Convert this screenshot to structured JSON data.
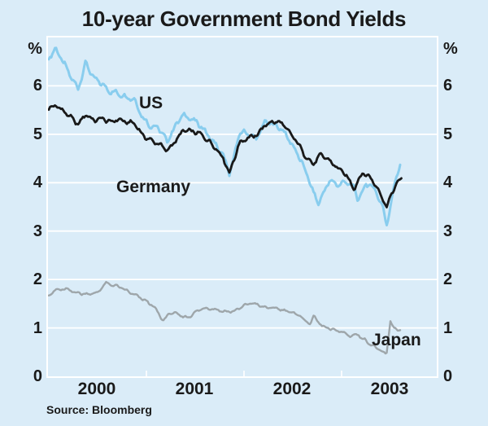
{
  "title": "10-year Government Bond Yields",
  "source": "Source: Bloomberg",
  "colors": {
    "background": "#daecf8",
    "grid": "#ffffff",
    "text": "#1a1a1a",
    "us_line": "#89cdee",
    "germany_line": "#191919",
    "japan_line": "#9ea6aa"
  },
  "chart_data": {
    "type": "line",
    "title": "10-year Government Bond Yields",
    "unit": "%",
    "ylim": [
      0,
      7
    ],
    "yticks": [
      0,
      1,
      2,
      3,
      4,
      5,
      6
    ],
    "xticks_years": [
      "2000",
      "2001",
      "2002",
      "2003"
    ],
    "x_range": [
      2000.0,
      2003.98
    ],
    "grid": true,
    "legend_position": "inline-labels",
    "source": "Source: Bloomberg",
    "series": [
      {
        "name": "US",
        "color": "#89cdee",
        "x": [
          2000.0,
          2000.07,
          2000.17,
          2000.25,
          2000.3,
          2000.38,
          2000.46,
          2000.54,
          2000.63,
          2000.71,
          2000.79,
          2000.88,
          2000.96,
          2001.04,
          2001.13,
          2001.21,
          2001.29,
          2001.38,
          2001.46,
          2001.54,
          2001.63,
          2001.71,
          2001.79,
          2001.85,
          2001.96,
          2002.04,
          2002.13,
          2002.21,
          2002.29,
          2002.38,
          2002.46,
          2002.54,
          2002.63,
          2002.71,
          2002.76,
          2002.88,
          2002.96,
          2003.04,
          2003.13,
          2003.17,
          2003.25,
          2003.33,
          2003.42,
          2003.46,
          2003.54,
          2003.6
        ],
        "values": [
          6.58,
          6.77,
          6.4,
          6.1,
          5.95,
          6.48,
          6.15,
          6.05,
          5.88,
          5.85,
          5.78,
          5.72,
          5.35,
          5.18,
          5.12,
          4.85,
          5.15,
          5.42,
          5.3,
          5.22,
          4.98,
          4.78,
          4.55,
          4.17,
          5.05,
          5.02,
          4.9,
          5.25,
          5.22,
          5.12,
          4.9,
          4.62,
          4.25,
          3.8,
          3.57,
          4.05,
          3.95,
          4.02,
          3.9,
          3.62,
          3.98,
          3.9,
          3.52,
          3.1,
          3.95,
          4.4
        ]
      },
      {
        "name": "Germany",
        "color": "#191919",
        "x": [
          2000.0,
          2000.07,
          2000.17,
          2000.25,
          2000.3,
          2000.38,
          2000.46,
          2000.54,
          2000.63,
          2000.71,
          2000.79,
          2000.88,
          2000.96,
          2001.04,
          2001.13,
          2001.21,
          2001.29,
          2001.38,
          2001.46,
          2001.54,
          2001.63,
          2001.71,
          2001.79,
          2001.85,
          2001.96,
          2002.04,
          2002.13,
          2002.21,
          2002.29,
          2002.38,
          2002.46,
          2002.54,
          2002.63,
          2002.71,
          2002.79,
          2002.88,
          2002.96,
          2003.04,
          2003.13,
          2003.21,
          2003.29,
          2003.38,
          2003.46,
          2003.54,
          2003.62
        ],
        "values": [
          5.52,
          5.6,
          5.45,
          5.3,
          5.2,
          5.42,
          5.28,
          5.33,
          5.25,
          5.31,
          5.25,
          5.23,
          4.98,
          4.88,
          4.8,
          4.66,
          4.84,
          5.08,
          5.06,
          5.02,
          4.88,
          4.72,
          4.5,
          4.2,
          4.85,
          4.92,
          4.98,
          5.18,
          5.26,
          5.24,
          5.05,
          4.85,
          4.55,
          4.38,
          4.58,
          4.45,
          4.3,
          4.17,
          3.88,
          4.2,
          4.12,
          3.85,
          3.5,
          3.9,
          4.12
        ]
      },
      {
        "name": "Japan",
        "color": "#9ea6aa",
        "x": [
          2000.0,
          2000.07,
          2000.17,
          2000.25,
          2000.33,
          2000.42,
          2000.5,
          2000.58,
          2000.67,
          2000.75,
          2000.83,
          2000.92,
          2001.0,
          2001.08,
          2001.17,
          2001.25,
          2001.33,
          2001.42,
          2001.5,
          2001.58,
          2001.67,
          2001.75,
          2001.83,
          2001.92,
          2002.0,
          2002.08,
          2002.17,
          2002.25,
          2002.33,
          2002.42,
          2002.5,
          2002.58,
          2002.67,
          2002.71,
          2002.75,
          2002.83,
          2002.92,
          2003.0,
          2003.08,
          2003.17,
          2003.25,
          2003.33,
          2003.42,
          2003.46,
          2003.5,
          2003.54,
          2003.6
        ],
        "values": [
          1.68,
          1.78,
          1.8,
          1.75,
          1.71,
          1.7,
          1.73,
          1.92,
          1.88,
          1.82,
          1.73,
          1.64,
          1.55,
          1.43,
          1.15,
          1.32,
          1.27,
          1.21,
          1.32,
          1.41,
          1.4,
          1.36,
          1.33,
          1.36,
          1.46,
          1.52,
          1.45,
          1.41,
          1.41,
          1.36,
          1.31,
          1.25,
          1.06,
          1.25,
          1.14,
          1.0,
          0.96,
          0.92,
          0.84,
          0.86,
          0.73,
          0.62,
          0.5,
          0.44,
          1.15,
          0.98,
          0.96
        ]
      }
    ]
  }
}
